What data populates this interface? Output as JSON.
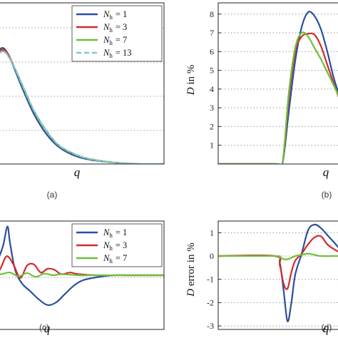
{
  "colors": {
    "blue": "#2b4fa0",
    "red": "#d22b2b",
    "green": "#6fbf3a",
    "cyan": "#7fc9d6"
  },
  "chart_data": [
    {
      "id": "a",
      "type": "line",
      "caption": "(a)",
      "xlabel": "q",
      "ylabel": "",
      "xlim": [
        0,
        1
      ],
      "ylim": [
        0,
        1
      ],
      "grid": "horizontal-dotted",
      "legend_position": "top-right",
      "legend": [
        {
          "var": "N",
          "sub": "h",
          "rhs": "= 1",
          "color": "blue",
          "dash": false
        },
        {
          "var": "N",
          "sub": "h",
          "rhs": "= 3",
          "color": "red",
          "dash": false
        },
        {
          "var": "N",
          "sub": "h",
          "rhs": "= 7",
          "color": "green",
          "dash": false
        },
        {
          "var": "N",
          "sub": "h",
          "rhs": "= 13",
          "color": "cyan",
          "dash": true
        }
      ],
      "series": [
        {
          "color": "blue",
          "x": [
            0,
            0.03,
            0.06,
            0.09,
            0.13,
            0.18,
            0.24,
            0.31,
            0.38,
            0.46,
            0.55,
            0.7,
            0.85,
            1
          ],
          "y": [
            0.64,
            0.7,
            0.72,
            0.68,
            0.58,
            0.45,
            0.31,
            0.19,
            0.11,
            0.06,
            0.03,
            0.01,
            0.0,
            0.0
          ]
        },
        {
          "color": "red",
          "x": [
            0,
            0.03,
            0.06,
            0.09,
            0.13,
            0.18,
            0.24,
            0.31,
            0.38,
            0.46,
            0.55,
            0.7,
            0.85,
            1
          ],
          "y": [
            0.64,
            0.69,
            0.71,
            0.68,
            0.59,
            0.47,
            0.33,
            0.21,
            0.12,
            0.07,
            0.035,
            0.01,
            0.0,
            0.0
          ]
        },
        {
          "color": "green",
          "x": [
            0,
            0.03,
            0.06,
            0.09,
            0.13,
            0.18,
            0.24,
            0.31,
            0.38,
            0.46,
            0.55,
            0.7,
            0.85,
            1
          ],
          "y": [
            0.64,
            0.68,
            0.7,
            0.67,
            0.59,
            0.47,
            0.33,
            0.21,
            0.12,
            0.07,
            0.035,
            0.01,
            0.0,
            0.0
          ]
        },
        {
          "color": "cyan",
          "dash": true,
          "x": [
            0,
            0.03,
            0.06,
            0.09,
            0.13,
            0.18,
            0.24,
            0.31,
            0.38,
            0.46,
            0.55,
            0.7,
            0.85,
            1
          ],
          "y": [
            0.64,
            0.68,
            0.7,
            0.67,
            0.59,
            0.47,
            0.33,
            0.21,
            0.12,
            0.07,
            0.035,
            0.01,
            0.0,
            0.0
          ]
        }
      ]
    },
    {
      "id": "b",
      "type": "line",
      "caption": "(b)",
      "xlabel": "q",
      "ylabel": "D in %",
      "xlim": [
        0,
        1
      ],
      "ylim": [
        0,
        8.6
      ],
      "yticks": [
        1,
        2,
        3,
        4,
        5,
        6,
        7,
        8
      ],
      "grid": "horizontal-dotted",
      "series": [
        {
          "color": "blue",
          "x": [
            0,
            0.45,
            0.5,
            0.55,
            0.6,
            0.65,
            0.7,
            0.75,
            0.8,
            0.85,
            0.9,
            0.95,
            1
          ],
          "y": [
            0,
            0,
            0,
            2.8,
            5.5,
            7.3,
            8.1,
            7.9,
            7.2,
            6.0,
            4.6,
            3.6,
            3.0
          ]
        },
        {
          "color": "red",
          "x": [
            0,
            0.45,
            0.5,
            0.55,
            0.6,
            0.65,
            0.7,
            0.75,
            0.8,
            0.85,
            0.9,
            0.95,
            1
          ],
          "y": [
            0,
            0,
            0,
            3.5,
            6.0,
            6.8,
            6.95,
            6.9,
            6.3,
            5.3,
            4.3,
            3.4,
            3.0
          ]
        },
        {
          "color": "green",
          "x": [
            0,
            0.45,
            0.5,
            0.55,
            0.6,
            0.65,
            0.7,
            0.75,
            0.8,
            0.85,
            0.9,
            0.95,
            1
          ],
          "y": [
            0,
            0,
            0,
            3.8,
            6.2,
            7.0,
            6.8,
            6.2,
            5.6,
            4.9,
            4.2,
            3.5,
            3.1
          ]
        }
      ]
    },
    {
      "id": "c",
      "type": "line",
      "caption": "(c)",
      "xlabel": "q",
      "ylabel": "",
      "xlim": [
        0,
        1
      ],
      "ylim": [
        -1,
        1
      ],
      "grid": "horizontal-dotted",
      "legend_position": "top-right",
      "legend": [
        {
          "var": "N",
          "sub": "h",
          "rhs": "= 1",
          "color": "blue",
          "dash": false
        },
        {
          "var": "N",
          "sub": "h",
          "rhs": "= 3",
          "color": "red",
          "dash": false
        },
        {
          "var": "N",
          "sub": "h",
          "rhs": "= 7",
          "color": "green",
          "dash": false
        }
      ],
      "series": [
        {
          "color": "blue",
          "x": [
            0,
            0.03,
            0.06,
            0.085,
            0.1,
            0.13,
            0.17,
            0.22,
            0.27,
            0.32,
            0.37,
            0.42,
            0.47,
            0.52,
            0.6,
            0.7,
            0.8,
            1
          ],
          "y": [
            0.2,
            0.3,
            0.55,
            0.9,
            0.6,
            0.1,
            -0.15,
            -0.3,
            -0.45,
            -0.55,
            -0.5,
            -0.35,
            -0.2,
            -0.1,
            -0.04,
            0.0,
            0.0,
            0.0
          ]
        },
        {
          "color": "red",
          "x": [
            0,
            0.04,
            0.08,
            0.12,
            0.16,
            0.2,
            0.24,
            0.28,
            0.32,
            0.36,
            0.4,
            0.45,
            0.5,
            0.6,
            0.8,
            1
          ],
          "y": [
            0.05,
            0.1,
            0.35,
            0.2,
            -0.05,
            0.18,
            0.2,
            0.05,
            0.12,
            0.1,
            0.02,
            0.05,
            0.02,
            0.0,
            0.0,
            0.0
          ]
        },
        {
          "color": "green",
          "x": [
            0,
            0.05,
            0.1,
            0.15,
            0.2,
            0.25,
            0.3,
            0.35,
            0.4,
            0.5,
            0.6,
            0.8,
            1
          ],
          "y": [
            0.0,
            0.02,
            0.05,
            -0.02,
            0.04,
            -0.03,
            0.03,
            0.0,
            0.02,
            0.0,
            0.0,
            0.0,
            0.0
          ]
        }
      ]
    },
    {
      "id": "d",
      "type": "line",
      "caption": "(d)",
      "xlabel": "q",
      "ylabel": "D error in %",
      "xlim": [
        0,
        1
      ],
      "ylim": [
        -3.15,
        1.5
      ],
      "yticks": [
        1,
        0,
        -1,
        -2,
        -3
      ],
      "grid": "horizontal-dotted",
      "series": [
        {
          "color": "blue",
          "x": [
            0,
            0.44,
            0.48,
            0.51,
            0.54,
            0.57,
            0.6,
            0.65,
            0.7,
            0.75,
            0.8,
            0.85,
            0.9,
            0.95,
            1
          ],
          "y": [
            0,
            0,
            -0.3,
            -1.5,
            -2.8,
            -2.0,
            -0.8,
            0.1,
            1.1,
            1.35,
            1.2,
            0.9,
            0.6,
            0.3,
            0.15
          ]
        },
        {
          "color": "red",
          "x": [
            0,
            0.44,
            0.48,
            0.51,
            0.54,
            0.57,
            0.6,
            0.65,
            0.7,
            0.75,
            0.8,
            0.85,
            0.9,
            0.95,
            1
          ],
          "y": [
            0,
            0,
            -0.4,
            -1.2,
            -1.4,
            -0.7,
            -0.2,
            0.1,
            0.5,
            0.8,
            0.85,
            0.5,
            0.3,
            0.15,
            0.05
          ]
        },
        {
          "color": "green",
          "x": [
            0,
            0.44,
            0.48,
            0.52,
            0.56,
            0.6,
            0.65,
            0.7,
            0.75,
            0.8,
            0.9,
            1
          ],
          "y": [
            0,
            0,
            -0.05,
            -0.15,
            -0.1,
            0.0,
            0.05,
            0.1,
            0.05,
            0.0,
            0.0,
            0.0
          ]
        }
      ]
    }
  ]
}
